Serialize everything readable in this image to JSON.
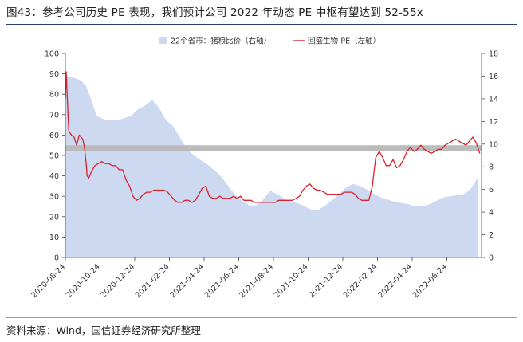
{
  "title": "图43：参考公司历史 PE 表现，我们预计公司 2022 年动态 PE 中枢有望达到 52-55x",
  "source": "资料来源：Wind，国信证券经济研究所整理",
  "chart_data": {
    "type": "area+line",
    "x_tick_labels": [
      "2020-08-24",
      "2020-10-24",
      "2020-12-24",
      "2021-02-24",
      "2021-04-24",
      "2021-06-24",
      "2021-08-24",
      "2021-10-24",
      "2021-12-24",
      "2022-02-24",
      "2022-04-24",
      "2022-06-24"
    ],
    "y_left": {
      "min": 0,
      "max": 100,
      "ticks": [
        "0",
        "10",
        "20",
        "30",
        "40",
        "50",
        "60",
        "70",
        "80",
        "90",
        "100"
      ]
    },
    "y_right": {
      "min": 0,
      "max": 18,
      "ticks": [
        "0",
        "2",
        "4",
        "6",
        "8",
        "10",
        "12",
        "14",
        "16",
        "18"
      ]
    },
    "band": {
      "y_from": 52,
      "y_to": 55,
      "axis": "left",
      "color": "#b8b8b8"
    },
    "legend": {
      "position": "top-center"
    },
    "series": [
      {
        "name": "22个省市：猪粮比价（右轴）",
        "kind": "area",
        "axis": "right",
        "color": "#ccd9f0",
        "x_month": [
          0,
          0.3,
          0.6,
          0.9,
          1.2,
          1.5,
          1.8,
          2.2,
          2.6,
          3.0,
          3.4,
          3.8,
          4.2,
          4.6,
          5.0,
          5.4,
          5.8,
          6.2,
          6.6,
          7.0,
          7.4,
          7.8,
          8.2,
          8.6,
          9.0,
          9.4,
          9.8,
          10.2,
          10.6,
          11.0,
          11.4,
          11.8,
          12.2,
          12.6,
          13.0,
          13.4,
          13.8,
          14.2,
          14.6,
          15.0,
          15.4,
          15.8,
          16.2,
          16.6,
          17.0,
          17.4,
          17.8,
          18.2,
          18.6,
          19.0,
          19.4,
          19.8,
          20.2,
          20.6,
          21.0,
          21.4,
          21.8,
          22.2,
          22.6,
          23.0,
          23.4,
          23.8
        ],
        "values": [
          15.9,
          15.9,
          15.8,
          15.6,
          15.1,
          13.9,
          12.5,
          12.2,
          12.1,
          12.1,
          12.3,
          12.5,
          13.1,
          13.4,
          13.9,
          13.2,
          12.1,
          11.6,
          10.6,
          9.6,
          9.0,
          8.6,
          8.2,
          7.7,
          7.1,
          6.3,
          5.5,
          5.0,
          4.6,
          4.6,
          5.1,
          5.9,
          5.6,
          5.2,
          4.9,
          4.8,
          4.5,
          4.2,
          4.2,
          4.6,
          5.1,
          5.6,
          6.2,
          6.5,
          6.3,
          6.0,
          5.6,
          5.3,
          5.1,
          4.9,
          4.8,
          4.7,
          4.5,
          4.5,
          4.7,
          5.0,
          5.3,
          5.4,
          5.5,
          5.6,
          6.1,
          7.1
        ]
      },
      {
        "name": "回盛生物-PE（左轴）",
        "kind": "line",
        "axis": "left",
        "color": "#d9222b",
        "x_month": [
          0,
          0.05,
          0.1,
          0.2,
          0.35,
          0.5,
          0.65,
          0.8,
          1.0,
          1.1,
          1.2,
          1.25,
          1.35,
          1.5,
          1.7,
          1.9,
          2.1,
          2.3,
          2.5,
          2.7,
          2.9,
          3.1,
          3.3,
          3.5,
          3.7,
          3.9,
          4.1,
          4.3,
          4.5,
          4.7,
          4.9,
          5.1,
          5.3,
          5.5,
          5.7,
          5.9,
          6.1,
          6.3,
          6.5,
          6.7,
          6.9,
          7.1,
          7.3,
          7.5,
          7.7,
          7.9,
          8.1,
          8.3,
          8.5,
          8.7,
          8.9,
          9.1,
          9.3,
          9.5,
          9.7,
          9.9,
          10.1,
          10.3,
          10.5,
          10.7,
          10.9,
          11.1,
          11.3,
          11.5,
          11.7,
          11.9,
          12.1,
          12.3,
          12.5,
          12.7,
          12.9,
          13.1,
          13.3,
          13.5,
          13.7,
          13.9,
          14.1,
          14.3,
          14.5,
          14.7,
          14.9,
          15.1,
          15.3,
          15.5,
          15.7,
          15.9,
          16.1,
          16.3,
          16.5,
          16.7,
          16.9,
          17.1,
          17.3,
          17.5,
          17.7,
          17.9,
          18.1,
          18.3,
          18.5,
          18.7,
          18.9,
          19.1,
          19.3,
          19.5,
          19.7,
          19.9,
          20.1,
          20.3,
          20.5,
          20.7,
          20.9,
          21.1,
          21.3,
          21.5,
          21.7,
          21.9,
          22.1,
          22.3,
          22.5,
          22.7,
          22.9,
          23.1,
          23.3,
          23.5,
          23.7,
          23.9
        ],
        "values": [
          78,
          91,
          80,
          62,
          60,
          59,
          55,
          60,
          58,
          54,
          46,
          40,
          39,
          42,
          45,
          46,
          47,
          46,
          46,
          45,
          45,
          43,
          43,
          38,
          35,
          30,
          28,
          29,
          31,
          32,
          32,
          33,
          33,
          33,
          33,
          32,
          30,
          28,
          27,
          27,
          28,
          28,
          27,
          28,
          31,
          34,
          35,
          30,
          29,
          29,
          30,
          29,
          29,
          29,
          30,
          29,
          30,
          28,
          28,
          28,
          27,
          27,
          27,
          27,
          27,
          27,
          27,
          28,
          28,
          28,
          28,
          28,
          29,
          30,
          33,
          35,
          36,
          34,
          33,
          33,
          32,
          31,
          31,
          31,
          31,
          31,
          32,
          32,
          32,
          31,
          29,
          28,
          28,
          28,
          35,
          49,
          52,
          49,
          45,
          45,
          48,
          44,
          45,
          48,
          52,
          54,
          52,
          53,
          55,
          53,
          52,
          51,
          52,
          53,
          53,
          55,
          56,
          57,
          58,
          57,
          56,
          55,
          57,
          59,
          56,
          51
        ]
      }
    ]
  }
}
